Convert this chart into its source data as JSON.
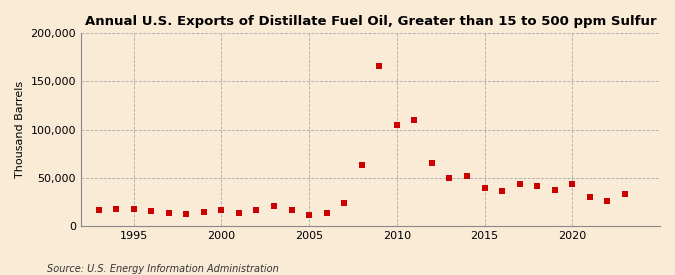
{
  "title": "Annual U.S. Exports of Distillate Fuel Oil, Greater than 15 to 500 ppm Sulfur",
  "ylabel": "Thousand Barrels",
  "source": "Source: U.S. Energy Information Administration",
  "background_color": "#faebd7",
  "plot_background_color": "#faebd7",
  "marker_color": "#cc0000",
  "grid_color": "#aaaaaa",
  "years": [
    1993,
    1994,
    1995,
    1996,
    1997,
    1998,
    1999,
    2000,
    2001,
    2002,
    2003,
    2004,
    2005,
    2006,
    2007,
    2008,
    2009,
    2010,
    2011,
    2012,
    2013,
    2014,
    2015,
    2016,
    2017,
    2018,
    2019,
    2020,
    2021,
    2022,
    2023
  ],
  "values": [
    16000,
    18000,
    18000,
    15000,
    13000,
    12500,
    14000,
    16000,
    13000,
    17000,
    21000,
    16000,
    11000,
    13000,
    24000,
    63000,
    166000,
    105000,
    110000,
    65000,
    50000,
    52000,
    39000,
    36000,
    43000,
    41000,
    37000,
    44000,
    30000,
    26000,
    33000
  ],
  "xlim": [
    1992,
    2025
  ],
  "ylim": [
    0,
    200000
  ],
  "yticks": [
    0,
    50000,
    100000,
    150000,
    200000
  ],
  "xticks": [
    1995,
    2000,
    2005,
    2010,
    2015,
    2020
  ]
}
